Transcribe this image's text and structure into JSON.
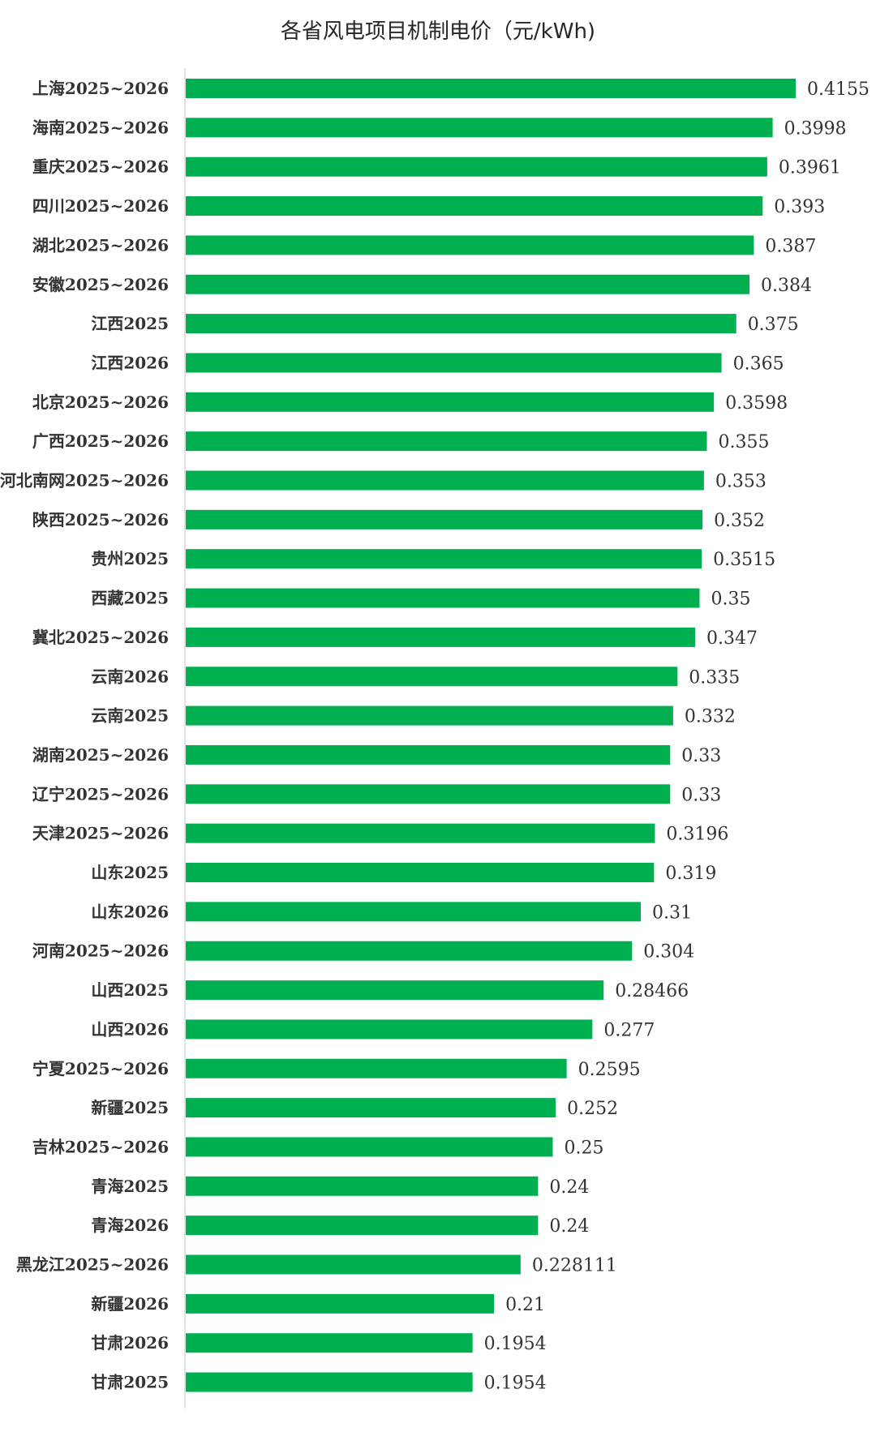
{
  "chart_data": {
    "type": "bar",
    "orientation": "horizontal",
    "title": "各省风电项目机制电价（元/kWh)",
    "xlabel": "",
    "ylabel": "",
    "xlim": [
      0,
      0.4155
    ],
    "grid": false,
    "legend": "none",
    "bar_color": "#00B050",
    "categories": [
      "上海2025~2026",
      "海南2025~2026",
      "重庆2025~2026",
      "四川2025~2026",
      "湖北2025~2026",
      "安徽2025~2026",
      "江西2025",
      "江西2026",
      "北京2025~2026",
      "广西2025~2026",
      "河北南网2025~2026",
      "陕西2025~2026",
      "贵州2025",
      "西藏2025",
      "冀北2025~2026",
      "云南2026",
      "云南2025",
      "湖南2025~2026",
      "辽宁2025~2026",
      "天津2025~2026",
      "山东2025",
      "山东2026",
      "河南2025~2026",
      "山西2025",
      "山西2026",
      "宁夏2025~2026",
      "新疆2025",
      "吉林2025~2026",
      "青海2025",
      "青海2026",
      "黑龙江2025~2026",
      "新疆2026",
      "甘肃2026",
      "甘肃2025"
    ],
    "values": [
      0.4155,
      0.3998,
      0.3961,
      0.393,
      0.387,
      0.384,
      0.375,
      0.365,
      0.3598,
      0.355,
      0.353,
      0.352,
      0.3515,
      0.35,
      0.347,
      0.335,
      0.332,
      0.33,
      0.33,
      0.3196,
      0.319,
      0.31,
      0.304,
      0.28466,
      0.277,
      0.2595,
      0.252,
      0.25,
      0.24,
      0.24,
      0.228111,
      0.21,
      0.1954,
      0.1954
    ],
    "value_labels": [
      "0.4155",
      "0.3998",
      "0.3961",
      "0.393",
      "0.387",
      "0.384",
      "0.375",
      "0.365",
      "0.3598",
      "0.355",
      "0.353",
      "0.352",
      "0.3515",
      "0.35",
      "0.347",
      "0.335",
      "0.332",
      "0.33",
      "0.33",
      "0.3196",
      "0.319",
      "0.31",
      "0.304",
      "0.28466",
      "0.277",
      "0.2595",
      "0.252",
      "0.25",
      "0.24",
      "0.24",
      "0.228111",
      "0.21",
      "0.1954",
      "0.1954"
    ]
  }
}
